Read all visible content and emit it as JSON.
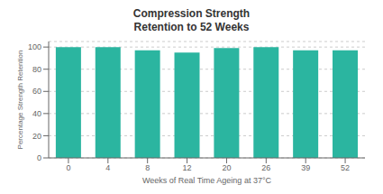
{
  "chart_data": {
    "type": "bar",
    "title": "Compression Strength",
    "subtitle": "Retention to 52 Weeks",
    "xlabel": "Weeks of Real Time Ageing at 37°C",
    "ylabel": "Percentage Strength Retention",
    "categories": [
      0,
      4,
      8,
      12,
      20,
      26,
      39,
      52
    ],
    "values": [
      100,
      100,
      97,
      95,
      99,
      100,
      97,
      97
    ],
    "color": "#2bb5a0",
    "ylim": [
      0,
      105
    ],
    "yticks": [
      0,
      20,
      40,
      60,
      80,
      100
    ],
    "grid": true
  }
}
